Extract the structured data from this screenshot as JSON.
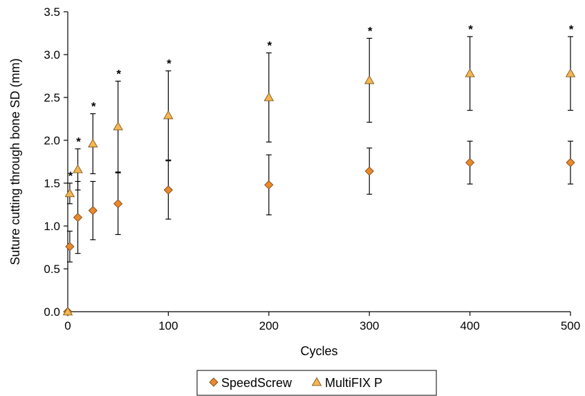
{
  "chart_data": {
    "type": "scatter",
    "title": "",
    "xlabel": "Cycles",
    "ylabel": "Suture cutting through bone SD (mm)",
    "xlim": [
      0,
      500
    ],
    "ylim": [
      0.0,
      3.5
    ],
    "x_ticks": [
      0,
      100,
      200,
      300,
      400,
      500
    ],
    "y_ticks": [
      "0.0",
      "0.5",
      "1.0",
      "1.5",
      "2.0",
      "2.5",
      "3.0",
      "3.5"
    ],
    "grid": false,
    "legend_position": "bottom-center",
    "significance_marker": "*",
    "series": [
      {
        "name": "SpeedScrew",
        "marker": "diamond",
        "color": "#E8892B",
        "points": [
          {
            "x": 0,
            "y": 0.0,
            "err": 0.0
          },
          {
            "x": 2,
            "y": 0.76,
            "err": 0.18
          },
          {
            "x": 10,
            "y": 1.1,
            "err": 0.42
          },
          {
            "x": 25,
            "y": 1.18,
            "err": 0.34
          },
          {
            "x": 50,
            "y": 1.26,
            "err": 0.36
          },
          {
            "x": 100,
            "y": 1.42,
            "err": 0.34
          },
          {
            "x": 200,
            "y": 1.48,
            "err": 0.35
          },
          {
            "x": 300,
            "y": 1.64,
            "err": 0.27
          },
          {
            "x": 400,
            "y": 1.74,
            "err": 0.25
          },
          {
            "x": 500,
            "y": 1.74,
            "err": 0.25
          }
        ]
      },
      {
        "name": "MultiFIX P",
        "marker": "triangle",
        "color": "#F5B551",
        "points": [
          {
            "x": 0,
            "y": 0.0,
            "err": 0.0,
            "sig": false
          },
          {
            "x": 2,
            "y": 1.38,
            "err": 0.12,
            "sig": true
          },
          {
            "x": 10,
            "y": 1.66,
            "err": 0.24,
            "sig": true
          },
          {
            "x": 25,
            "y": 1.96,
            "err": 0.35,
            "sig": true
          },
          {
            "x": 50,
            "y": 2.16,
            "err": 0.53,
            "sig": true
          },
          {
            "x": 100,
            "y": 2.29,
            "err": 0.52,
            "sig": true
          },
          {
            "x": 200,
            "y": 2.5,
            "err": 0.52,
            "sig": true
          },
          {
            "x": 300,
            "y": 2.7,
            "err": 0.49,
            "sig": true
          },
          {
            "x": 400,
            "y": 2.78,
            "err": 0.43,
            "sig": true
          },
          {
            "x": 500,
            "y": 2.78,
            "err": 0.43,
            "sig": true
          }
        ]
      }
    ]
  }
}
